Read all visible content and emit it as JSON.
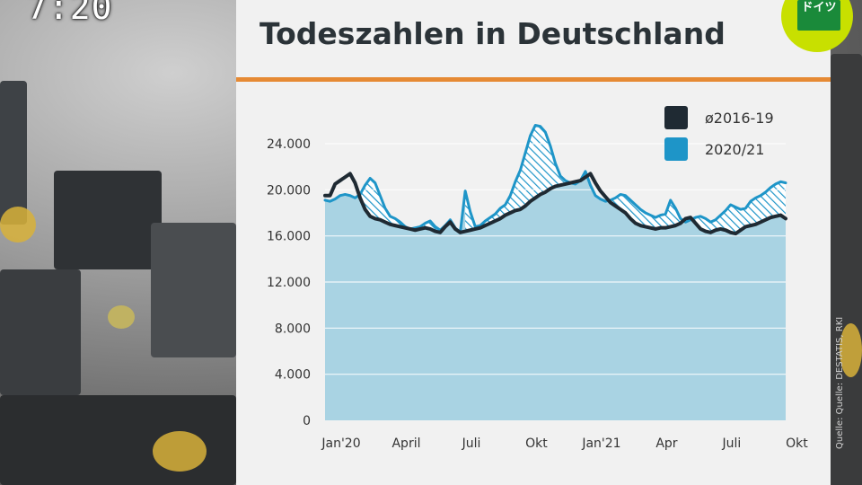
{
  "overlay": {
    "clock": "7:20",
    "badge_line1": "ドイツ",
    "source_note": "Quelle: Quelle: DESTATIS, RKI"
  },
  "chart_data": {
    "type": "area",
    "title": "Todeszahlen in Deutschland",
    "xlabel": "",
    "ylabel": "",
    "ylim": [
      0,
      24000
    ],
    "yticks": [
      0,
      4000,
      8000,
      12000,
      16000,
      20000,
      24000
    ],
    "ytick_labels": [
      "0",
      "4.000",
      "8.000",
      "12.000",
      "16.000",
      "20.000",
      "24.000"
    ],
    "x_tick_labels": [
      "Jan'20",
      "April",
      "Juli",
      "Okt",
      "Jan'21",
      "Apr",
      "Juli",
      "Okt"
    ],
    "x_tick_weeks": [
      0,
      13,
      26,
      39,
      52,
      65,
      78,
      91
    ],
    "grid": true,
    "legend_position": "top-right",
    "colors": {
      "area": "#a9d3e3",
      "line2020": "#1e95c8",
      "avg": "#1f2a33",
      "hatch": "#1e95c8"
    },
    "series": [
      {
        "name": "ø2016-19",
        "x": [
          0,
          1,
          2,
          3,
          4,
          5,
          6,
          7,
          8,
          9,
          10,
          11,
          12,
          13,
          14,
          15,
          16,
          17,
          18,
          19,
          20,
          21,
          22,
          23,
          24,
          25,
          26,
          27,
          28,
          29,
          30,
          31,
          32,
          33,
          34,
          35,
          36,
          37,
          38,
          39,
          40,
          41,
          42,
          43,
          44,
          45,
          46,
          47,
          48,
          49,
          50,
          51,
          52,
          53,
          54,
          55,
          56,
          57,
          58,
          59,
          60,
          61,
          62,
          63,
          64,
          65,
          66,
          67,
          68,
          69,
          70,
          71,
          72,
          73,
          74,
          75,
          76,
          77,
          78,
          79,
          80,
          81,
          82,
          83,
          84,
          85,
          86,
          87,
          88,
          89,
          90,
          91,
          92
        ],
        "values": [
          19500,
          19500,
          20500,
          20800,
          21100,
          21400,
          20600,
          19300,
          18300,
          17700,
          17500,
          17400,
          17200,
          17000,
          16900,
          16800,
          16700,
          16600,
          16500,
          16600,
          16700,
          16600,
          16400,
          16300,
          16800,
          17200,
          16600,
          16300,
          16400,
          16500,
          16600,
          16700,
          16900,
          17100,
          17300,
          17500,
          17800,
          18000,
          18200,
          18300,
          18600,
          19000,
          19300,
          19600,
          19800,
          20100,
          20300,
          20400,
          20500,
          20600,
          20700,
          20800,
          21100,
          21400,
          20600,
          19900,
          19400,
          18900,
          18600,
          18300,
          18000,
          17500,
          17100,
          16900,
          16800,
          16700,
          16600,
          16700,
          16700,
          16800,
          16900,
          17100,
          17500,
          17600,
          17100,
          16600,
          16400,
          16300,
          16500,
          16600,
          16500,
          16300,
          16200,
          16500,
          16800,
          16900,
          17000,
          17200,
          17400,
          17600,
          17700,
          17800,
          17500
        ]
      },
      {
        "name": "2020/21",
        "x": [
          0,
          1,
          2,
          3,
          4,
          5,
          6,
          7,
          8,
          9,
          10,
          11,
          12,
          13,
          14,
          15,
          16,
          17,
          18,
          19,
          20,
          21,
          22,
          23,
          24,
          25,
          26,
          27,
          28,
          29,
          30,
          31,
          32,
          33,
          34,
          35,
          36,
          37,
          38,
          39,
          40,
          41,
          42,
          43,
          44,
          45,
          46,
          47,
          48,
          49,
          50,
          51,
          52,
          53,
          54,
          55,
          56,
          57,
          58,
          59,
          60,
          61,
          62,
          63,
          64,
          65,
          66,
          67,
          68,
          69,
          70,
          71,
          72,
          73,
          74,
          75,
          76,
          77,
          78,
          79,
          80,
          81,
          82,
          83,
          84,
          85,
          86,
          87,
          88,
          89,
          90,
          91,
          92
        ],
        "values": [
          19100,
          19000,
          19200,
          19500,
          19600,
          19500,
          19300,
          19600,
          20400,
          21000,
          20600,
          19500,
          18400,
          17700,
          17500,
          17200,
          16800,
          16600,
          16700,
          16800,
          17100,
          17300,
          16800,
          16500,
          16900,
          17400,
          16700,
          16300,
          19900,
          18100,
          16800,
          16900,
          17300,
          17600,
          17900,
          18400,
          18700,
          19500,
          20700,
          21700,
          23200,
          24700,
          25600,
          25500,
          25000,
          23800,
          22300,
          21200,
          20800,
          20600,
          20500,
          20800,
          21600,
          20400,
          19500,
          19200,
          19000,
          19100,
          19300,
          19600,
          19500,
          19100,
          18700,
          18300,
          18000,
          17800,
          17600,
          17800,
          17900,
          19100,
          18400,
          17500,
          17200,
          17400,
          17600,
          17700,
          17500,
          17200,
          17400,
          17800,
          18200,
          18700,
          18500,
          18300,
          18400,
          19000,
          19300,
          19500,
          19800,
          20200,
          20500,
          20700,
          20600
        ]
      }
    ]
  }
}
